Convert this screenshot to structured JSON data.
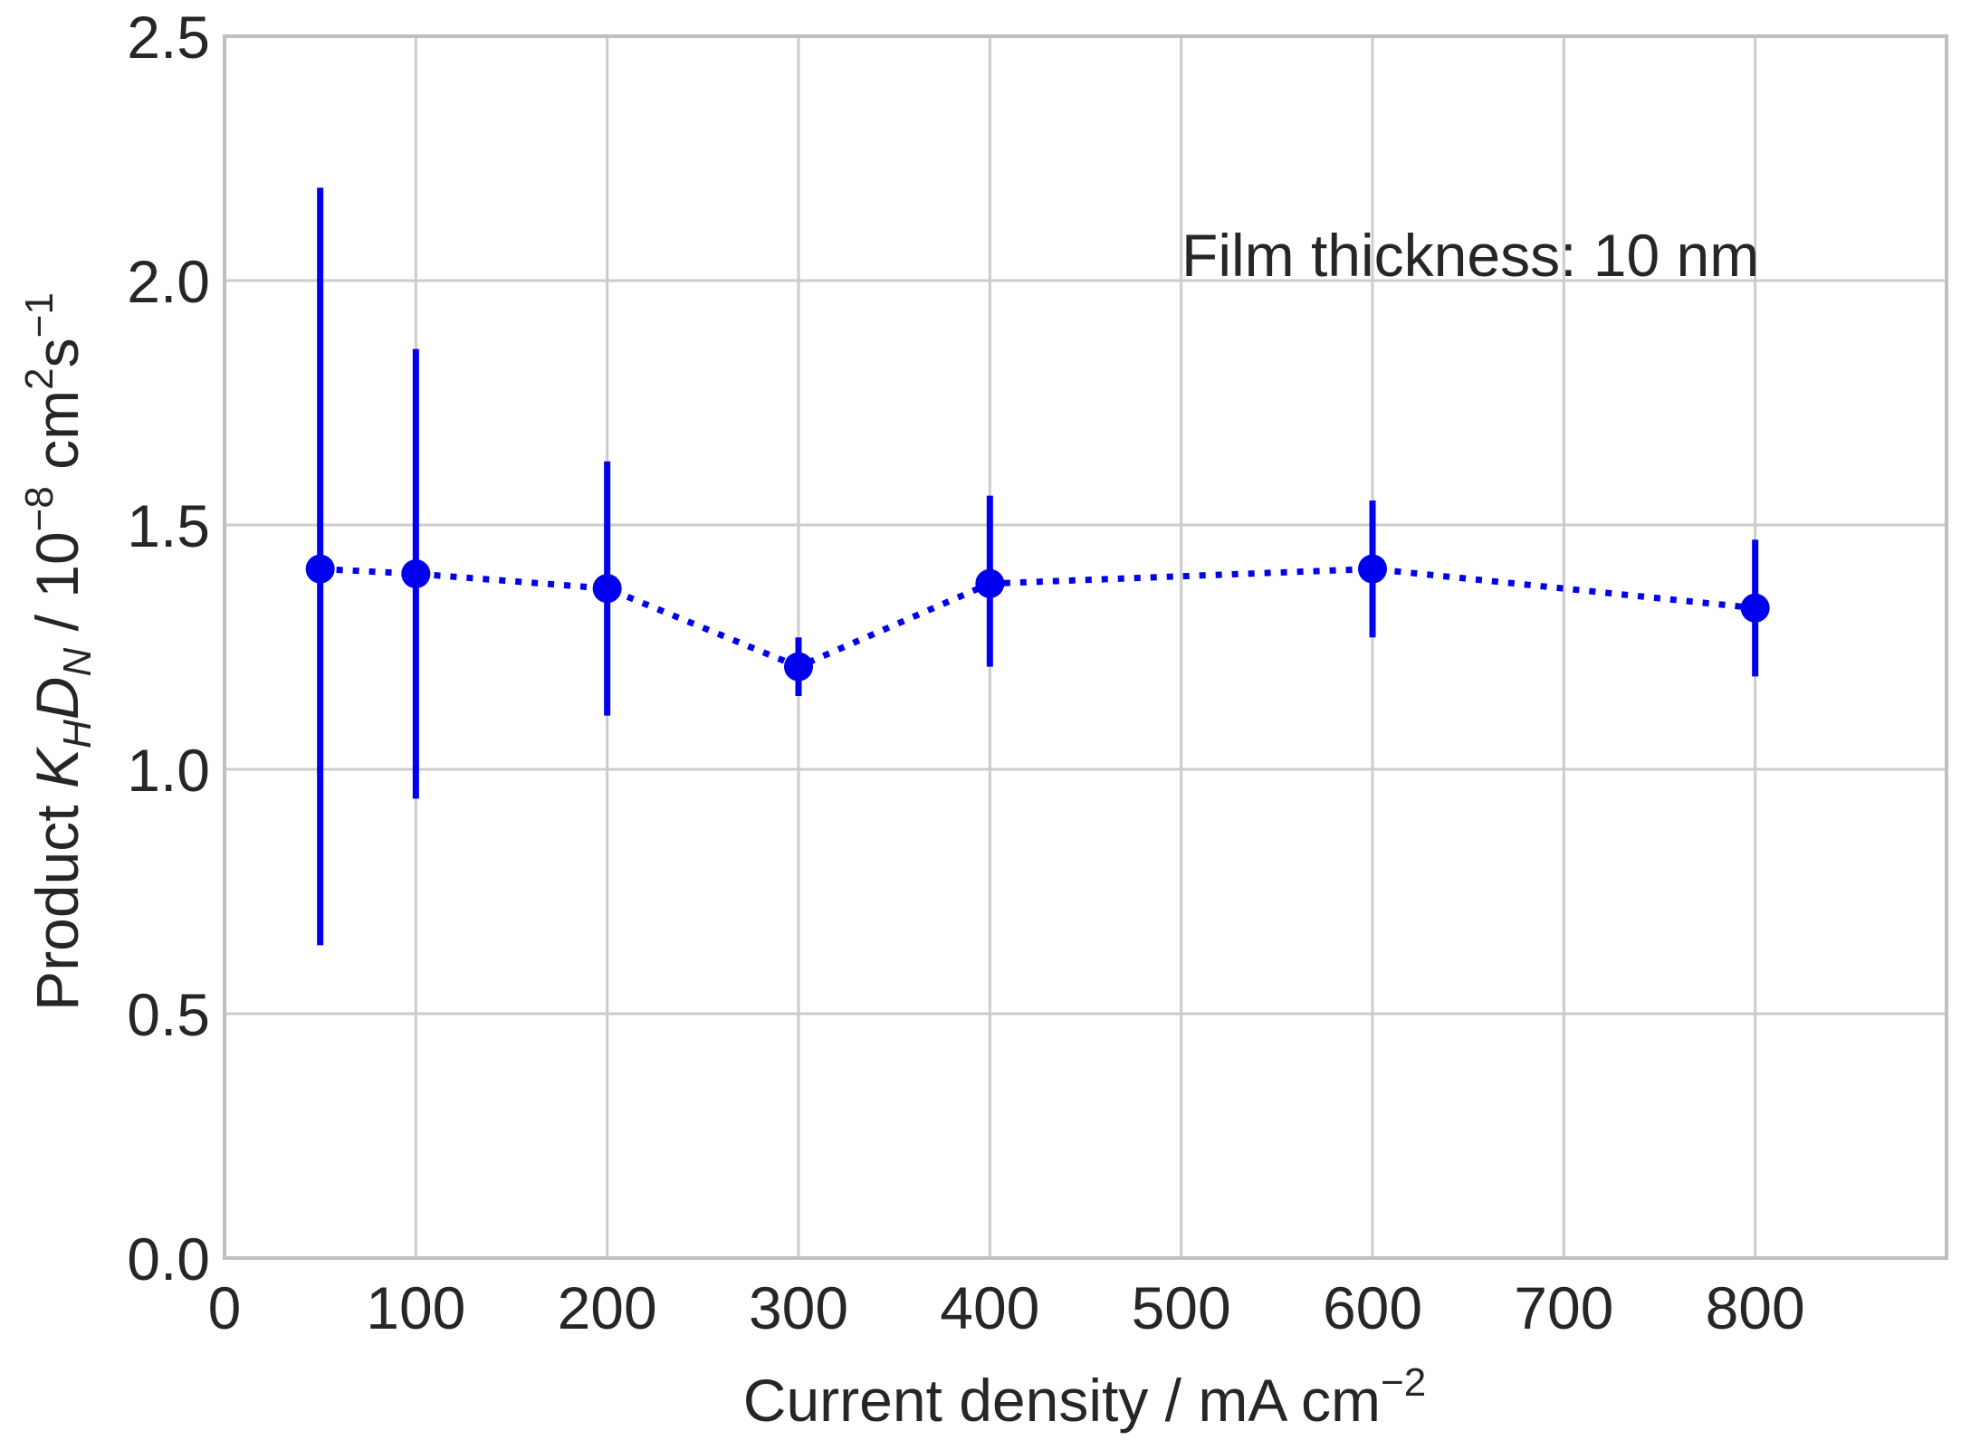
{
  "chart_data": {
    "type": "scatter",
    "title": "",
    "xlabel": {
      "text": "Current density / mA cm",
      "superscript": "−2"
    },
    "ylabel": {
      "prefix": "Product ",
      "K": "K",
      "K_sub": "H",
      "D": "D",
      "D_sub": "N",
      "units_prefix": " / 10",
      "units_exp": "−8",
      "units_cm": " cm",
      "units_cm_exp": "2",
      "units_s": "s",
      "units_s_exp": "−1"
    },
    "xlim": [
      0,
      900
    ],
    "ylim": [
      0.0,
      2.5
    ],
    "xticks": [
      0,
      100,
      200,
      300,
      400,
      500,
      600,
      700,
      800
    ],
    "xtick_labels": [
      "0",
      "100",
      "200",
      "300",
      "400",
      "500",
      "600",
      "700",
      "800"
    ],
    "yticks": [
      0.0,
      0.5,
      1.0,
      1.5,
      2.0,
      2.5
    ],
    "ytick_labels": [
      "0.0",
      "0.5",
      "1.0",
      "1.5",
      "2.0",
      "2.5"
    ],
    "grid": true,
    "annotation": "Film thickness: 10 nm",
    "series": [
      {
        "x": [
          50,
          100,
          200,
          300,
          400,
          600,
          800
        ],
        "y": [
          1.41,
          1.4,
          1.37,
          1.21,
          1.38,
          1.41,
          1.33
        ],
        "y_err_low": [
          0.64,
          0.94,
          1.11,
          1.15,
          1.21,
          1.27,
          1.19
        ],
        "y_err_high": [
          2.19,
          1.86,
          1.63,
          1.27,
          1.56,
          1.55,
          1.47
        ],
        "color": "#0000ee",
        "line_style": "dotted",
        "marker": "circle"
      }
    ]
  },
  "colors": {
    "grid": "#cccccc",
    "frame": "#bfbfbf",
    "series": "#0000ee",
    "text": "#262626"
  }
}
